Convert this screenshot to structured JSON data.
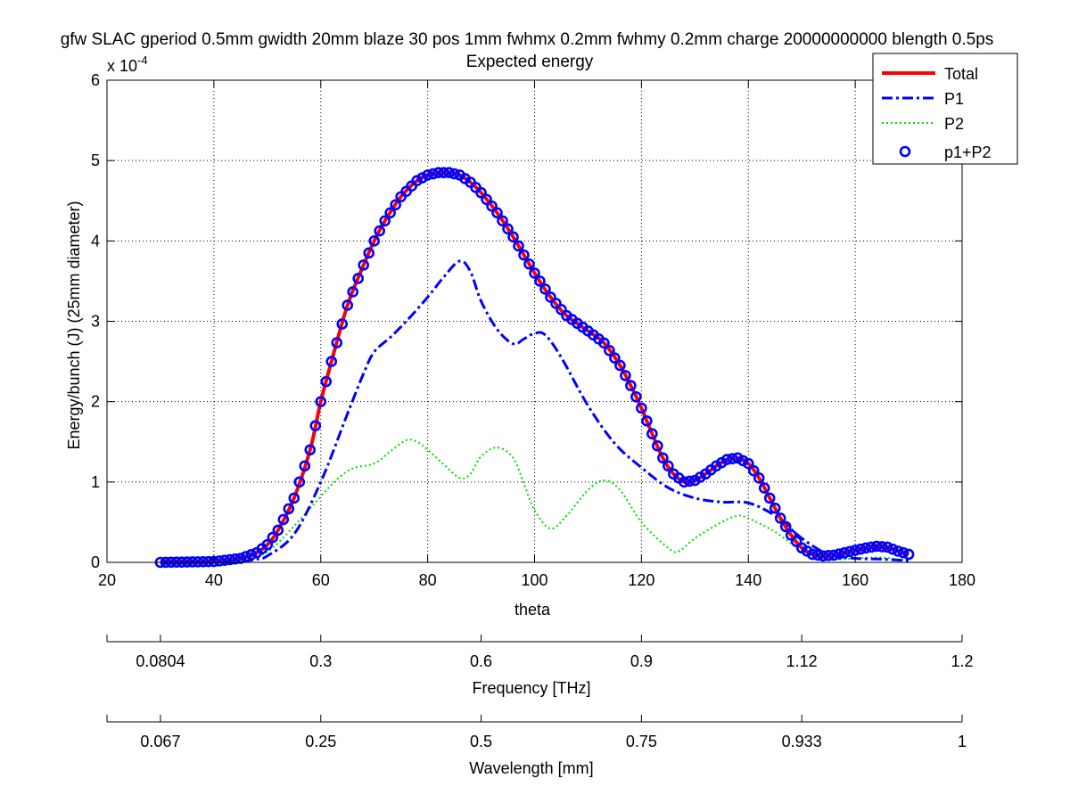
{
  "title_line1": "gfw SLAC gperiod 0.5mm gwidth 20mm blaze 30 pos 1mm fwhmx 0.2mm fwhmy 0.2mm charge 20000000000 blength 0.5ps",
  "title_line2": "Expected energy",
  "y_multiplier_base": "x 10",
  "y_multiplier_exp": "-4",
  "xlabel": "theta",
  "ylabel": "Energy/bunch (J) (25mm diameter)",
  "freq_axis": {
    "label": "Frequency [THz]",
    "ticks": [
      {
        "theta": 30,
        "label": "0.0804"
      },
      {
        "theta": 60,
        "label": "0.3"
      },
      {
        "theta": 90,
        "label": "0.6"
      },
      {
        "theta": 120,
        "label": "0.9"
      },
      {
        "theta": 150,
        "label": "1.12"
      },
      {
        "theta": 180,
        "label": "1.2"
      }
    ]
  },
  "wave_axis": {
    "label": "Wavelength [mm]",
    "ticks": [
      {
        "theta": 30,
        "label": "0.067"
      },
      {
        "theta": 60,
        "label": "0.25"
      },
      {
        "theta": 90,
        "label": "0.5"
      },
      {
        "theta": 120,
        "label": "0.75"
      },
      {
        "theta": 150,
        "label": "0.933"
      },
      {
        "theta": 180,
        "label": "1"
      }
    ]
  },
  "chart_data": {
    "type": "line",
    "xlim": [
      20,
      180
    ],
    "ylim": [
      0,
      6
    ],
    "xticks": [
      20,
      40,
      60,
      80,
      100,
      120,
      140,
      160,
      180
    ],
    "yticks": [
      0,
      1,
      2,
      3,
      4,
      5,
      6
    ],
    "grid": true,
    "legend_position": "top-right",
    "series": [
      {
        "name": "Total",
        "color": "#ff0000",
        "style": "solid",
        "x": [
          30,
          40,
          45,
          48,
          50,
          52,
          55,
          58,
          60,
          62,
          65,
          68,
          70,
          72,
          75,
          78,
          80,
          82,
          84,
          86,
          88,
          90,
          93,
          96,
          100,
          103,
          106,
          110,
          113,
          116,
          118,
          120,
          122,
          124,
          126,
          128,
          130,
          132,
          134,
          136,
          138,
          140,
          142,
          144,
          146,
          148,
          150,
          152,
          154,
          156,
          158,
          160,
          162,
          164,
          166,
          168,
          170
        ],
        "y": [
          0,
          0.01,
          0.05,
          0.12,
          0.22,
          0.4,
          0.8,
          1.4,
          2.0,
          2.5,
          3.2,
          3.7,
          4.0,
          4.25,
          4.55,
          4.75,
          4.82,
          4.85,
          4.85,
          4.82,
          4.73,
          4.6,
          4.35,
          4.05,
          3.6,
          3.3,
          3.07,
          2.88,
          2.73,
          2.45,
          2.2,
          1.92,
          1.6,
          1.3,
          1.1,
          1.0,
          1.02,
          1.1,
          1.2,
          1.28,
          1.3,
          1.23,
          1.05,
          0.8,
          0.55,
          0.34,
          0.18,
          0.1,
          0.08,
          0.09,
          0.12,
          0.15,
          0.18,
          0.2,
          0.19,
          0.14,
          0.1
        ]
      },
      {
        "name": "P1",
        "color": "#0000ff",
        "style": "dashdot",
        "x": [
          30,
          40,
          45,
          48,
          50,
          55,
          60,
          65,
          68,
          70,
          73,
          76,
          80,
          83,
          86,
          88,
          90,
          93,
          96,
          98,
          100,
          102,
          105,
          110,
          115,
          120,
          125,
          130,
          135,
          140,
          145,
          150,
          155,
          160,
          165,
          170
        ],
        "y": [
          0,
          0,
          0.01,
          0.04,
          0.08,
          0.35,
          1.0,
          1.85,
          2.35,
          2.62,
          2.8,
          3.0,
          3.3,
          3.55,
          3.75,
          3.62,
          3.25,
          2.9,
          2.72,
          2.78,
          2.85,
          2.83,
          2.55,
          1.95,
          1.48,
          1.18,
          0.93,
          0.8,
          0.75,
          0.74,
          0.58,
          0.3,
          0.1,
          0.05,
          0.04,
          0.02
        ]
      },
      {
        "name": "P2",
        "color": "#00dd00",
        "style": "dotted",
        "x": [
          30,
          40,
          45,
          50,
          55,
          60,
          63,
          66,
          70,
          73,
          76,
          78,
          80,
          83,
          86,
          88,
          90,
          93,
          96,
          98,
          100,
          103,
          106,
          110,
          113,
          116,
          120,
          125,
          127,
          130,
          135,
          138,
          140,
          145,
          150,
          155,
          160,
          165,
          170
        ],
        "y": [
          0,
          0,
          0.02,
          0.13,
          0.45,
          0.82,
          1.03,
          1.17,
          1.23,
          1.38,
          1.52,
          1.5,
          1.4,
          1.22,
          1.05,
          1.1,
          1.32,
          1.43,
          1.3,
          0.98,
          0.65,
          0.42,
          0.58,
          0.9,
          1.02,
          0.9,
          0.5,
          0.18,
          0.14,
          0.3,
          0.5,
          0.58,
          0.55,
          0.38,
          0.15,
          0.04,
          0.05,
          0.06,
          0.02
        ]
      },
      {
        "name": "p1+P2",
        "color": "#0000ff",
        "style": "circles",
        "marker_x_start": 30,
        "marker_x_end": 170,
        "marker_x_step": 1
      }
    ]
  }
}
